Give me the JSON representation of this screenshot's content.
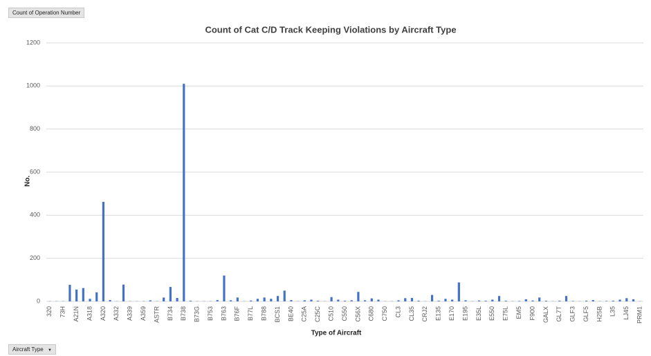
{
  "ui": {
    "value_field_button": "Count of Operation Number",
    "axis_field_button": "Aircraft Type"
  },
  "chart_data": {
    "type": "bar",
    "title": "Count of Cat C/D Track Keeping Violations by Aircraft Type",
    "x_label": "Type of Aircraft",
    "y_label": "No.",
    "color": "#4472c4",
    "grid": true,
    "ylim": [
      0,
      1200
    ],
    "yticks": [
      0,
      200,
      400,
      600,
      800,
      1000,
      1200
    ],
    "categories": [
      "320",
      null,
      "73H",
      null,
      "A21N",
      null,
      "A318",
      null,
      "A320",
      null,
      "A332",
      null,
      "A339",
      null,
      "A359",
      null,
      "ASTR",
      null,
      "B734",
      null,
      "B738",
      null,
      "B73G",
      null,
      "B753",
      null,
      "B763",
      null,
      "B76F",
      null,
      "B77L",
      null,
      "B788",
      null,
      "BCS1",
      null,
      "BE40",
      null,
      "C25A",
      null,
      "C25C",
      null,
      "C510",
      null,
      "C550",
      null,
      "C56X",
      null,
      "C680",
      null,
      "C750",
      null,
      "CL3",
      null,
      "CL35",
      null,
      "CRJ2",
      null,
      "E135",
      null,
      "E170",
      null,
      "E195",
      null,
      "E35L",
      null,
      "E550",
      null,
      "E75L",
      null,
      "EM5",
      null,
      "F900",
      null,
      "GALX",
      null,
      "GL7T",
      null,
      "GLF3",
      null,
      "GLF5",
      null,
      "H25B",
      null,
      "L35",
      null,
      "LJ45",
      null,
      "PRM1"
    ],
    "values": [
      1,
      1,
      1,
      77,
      55,
      62,
      12,
      42,
      462,
      6,
      1,
      78,
      1,
      1,
      1,
      5,
      1,
      18,
      67,
      16,
      1010,
      3,
      1,
      1,
      1,
      6,
      120,
      5,
      18,
      1,
      4,
      12,
      18,
      12,
      25,
      50,
      6,
      1,
      5,
      8,
      3,
      1,
      20,
      8,
      3,
      5,
      44,
      5,
      14,
      8,
      1,
      1,
      5,
      15,
      16,
      3,
      1,
      30,
      3,
      12,
      8,
      88,
      5,
      1,
      4,
      3,
      8,
      25,
      3,
      1,
      2,
      10,
      4,
      18,
      3,
      1,
      3,
      25,
      2,
      1,
      3,
      6,
      1,
      2,
      3,
      8,
      15,
      10,
      1
    ]
  }
}
